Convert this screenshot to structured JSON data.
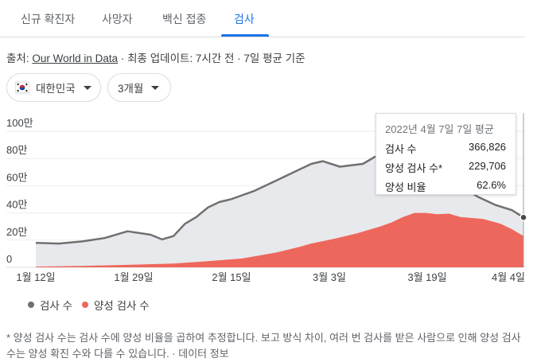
{
  "tabs": [
    {
      "label": "신규 확진자"
    },
    {
      "label": "사망자"
    },
    {
      "label": "백신 접종"
    },
    {
      "label": "검사"
    }
  ],
  "source": {
    "prefix": "출처: ",
    "link": "Our World in Data",
    "suffix": " · 최종 업데이트: 7시간 전 · 7일 평균 기준"
  },
  "filters": {
    "country": "대한민국",
    "period": "3개월"
  },
  "tooltip": {
    "title": "2022년 4월 7일 7일 평균",
    "rows": [
      {
        "label": "검사 수",
        "value": "366,826"
      },
      {
        "label": "양성 검사 수*",
        "value": "229,706"
      },
      {
        "label": "양성 비율",
        "value": "62.6%"
      }
    ]
  },
  "legend": {
    "tests": "검사 수",
    "positive": "양성 검사 수"
  },
  "footnote": "* 양성 검사 수는 검사 수에 양성 비율을 곱하여 추정합니다. 보고 방식 차이, 여러 번 검사를 받은 사람으로 인해 양성 검사 수는 양성 확진 수와 다를 수 있습니다. · 데이터 정보",
  "colors": {
    "accent": "#1a73e8",
    "tests_line": "#707070",
    "tests_fill": "#e8e9ec",
    "positive_fill": "#ee675c"
  },
  "chart_data": {
    "type": "area",
    "x_ticks": [
      "1월 12일",
      "1월 29일",
      "2월 15일",
      "3월 3일",
      "3월 19일",
      "4월 4일"
    ],
    "y_ticks": [
      "0",
      "20만",
      "40만",
      "60만",
      "80만",
      "100만"
    ],
    "ylim": [
      0,
      1000000
    ],
    "x_range": [
      "2022-01-12",
      "2022-04-07"
    ],
    "series": [
      {
        "name": "검사 수",
        "x": [
          "2022-01-12",
          "2022-01-16",
          "2022-01-20",
          "2022-01-24",
          "2022-01-28",
          "2022-02-01",
          "2022-02-03",
          "2022-02-05",
          "2022-02-07",
          "2022-02-09",
          "2022-02-11",
          "2022-02-13",
          "2022-02-15",
          "2022-02-19",
          "2022-02-23",
          "2022-02-27",
          "2022-03-01",
          "2022-03-03",
          "2022-03-06",
          "2022-03-08",
          "2022-03-10",
          "2022-03-12",
          "2022-03-14",
          "2022-03-16",
          "2022-03-18",
          "2022-03-20",
          "2022-03-22",
          "2022-03-26",
          "2022-03-30",
          "2022-04-02",
          "2022-04-05",
          "2022-04-07"
        ],
        "values": [
          180000,
          175000,
          190000,
          215000,
          265000,
          240000,
          205000,
          230000,
          320000,
          370000,
          440000,
          480000,
          500000,
          560000,
          640000,
          720000,
          760000,
          780000,
          740000,
          750000,
          760000,
          810000,
          850000,
          880000,
          860000,
          820000,
          760000,
          620000,
          520000,
          460000,
          420000,
          366826
        ]
      },
      {
        "name": "양성 검사 수",
        "x": [
          "2022-01-12",
          "2022-01-20",
          "2022-01-28",
          "2022-02-05",
          "2022-02-11",
          "2022-02-17",
          "2022-02-23",
          "2022-02-27",
          "2022-03-01",
          "2022-03-05",
          "2022-03-09",
          "2022-03-13",
          "2022-03-15",
          "2022-03-17",
          "2022-03-19",
          "2022-03-21",
          "2022-03-23",
          "2022-03-25",
          "2022-03-27",
          "2022-03-31",
          "2022-04-03",
          "2022-04-05",
          "2022-04-07"
        ],
        "values": [
          5000,
          10000,
          18000,
          28000,
          45000,
          65000,
          110000,
          150000,
          175000,
          210000,
          250000,
          300000,
          330000,
          370000,
          400000,
          400000,
          390000,
          395000,
          370000,
          355000,
          320000,
          280000,
          229706
        ]
      }
    ]
  }
}
